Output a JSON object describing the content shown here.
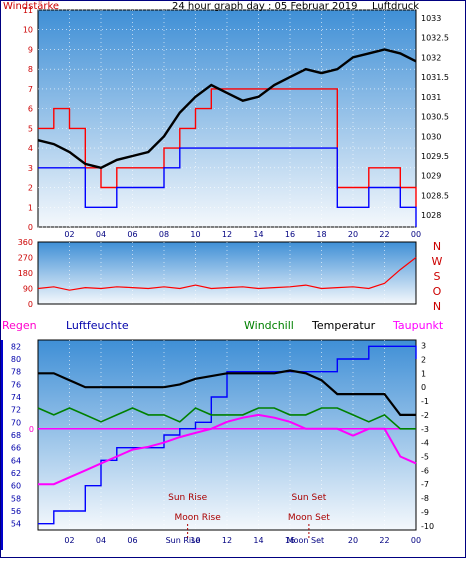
{
  "page": {
    "title": "24 hour graph day : 05 Februar 2019",
    "colors": {
      "background": "#ffffff",
      "frame": "#000080",
      "plot_top": "#3f8fd6",
      "plot_bottom": "#f4f8fc",
      "grid": "#ffffff"
    }
  },
  "chart_data": [
    {
      "id": "wind_pressure",
      "type": "line",
      "x_ticks": [
        "02",
        "04",
        "06",
        "08",
        "10",
        "12",
        "14",
        "16",
        "18",
        "20",
        "22",
        "00"
      ],
      "left_axis": {
        "label": "Windstärke",
        "color": "#cc0000",
        "ticks": [
          0,
          1,
          2,
          3,
          4,
          5,
          6,
          7,
          8,
          9,
          10,
          11
        ],
        "ylim": [
          0,
          11
        ]
      },
      "right_axis": {
        "label": "Luftdruck",
        "color": "#000000",
        "ticks": [
          1028,
          1028.5,
          1029,
          1029.5,
          1030,
          1030.5,
          1031,
          1031.5,
          1032,
          1032.5,
          1033
        ],
        "ylim": [
          1027.7,
          1033.2
        ]
      },
      "series": [
        {
          "color": "#ff0000",
          "axis": "left",
          "x": [
            0,
            1,
            2,
            3,
            4,
            5,
            6,
            7,
            8,
            9,
            10,
            11,
            12,
            13,
            14,
            15,
            16,
            17,
            18,
            19,
            20,
            21,
            22,
            23,
            24
          ],
          "values": [
            5,
            6,
            5,
            3,
            2,
            3,
            3,
            3,
            4,
            5,
            6,
            7,
            7,
            7,
            7,
            7,
            7,
            7,
            7,
            2,
            2,
            3,
            3,
            2,
            1
          ]
        },
        {
          "color": "#0000ff",
          "axis": "left",
          "x": [
            0,
            1,
            2,
            3,
            4,
            5,
            6,
            7,
            8,
            9,
            10,
            11,
            12,
            13,
            14,
            15,
            16,
            17,
            18,
            19,
            20,
            21,
            22,
            23,
            24
          ],
          "values": [
            3,
            3,
            3,
            1,
            1,
            2,
            2,
            2,
            3,
            4,
            4,
            4,
            4,
            4,
            4,
            4,
            4,
            4,
            4,
            1,
            1,
            2,
            2,
            1,
            0
          ]
        },
        {
          "color": "#000000",
          "axis": "right",
          "x": [
            0,
            1,
            2,
            3,
            4,
            5,
            6,
            7,
            8,
            9,
            10,
            11,
            12,
            13,
            14,
            15,
            16,
            17,
            18,
            19,
            20,
            21,
            22,
            23,
            24
          ],
          "values": [
            1029.9,
            1029.8,
            1029.6,
            1029.3,
            1029.2,
            1029.4,
            1029.5,
            1029.6,
            1030.0,
            1030.6,
            1031.0,
            1031.3,
            1031.1,
            1030.9,
            1031.0,
            1031.3,
            1031.5,
            1031.7,
            1031.6,
            1031.7,
            1032.0,
            1032.1,
            1032.2,
            1032.1,
            1031.9
          ]
        }
      ]
    },
    {
      "id": "wind_direction",
      "type": "line",
      "x_ticks": [],
      "left_axis": {
        "label": "",
        "color": "#cc0000",
        "ticks": [
          0,
          90,
          180,
          270,
          360
        ],
        "ylim": [
          0,
          360
        ]
      },
      "right_axis": {
        "labels": [
          "N",
          "W",
          "S",
          "O",
          "N"
        ],
        "color": "#cc0000"
      },
      "series": [
        {
          "color": "#ff0000",
          "x": [
            0,
            1,
            2,
            3,
            4,
            5,
            6,
            7,
            8,
            9,
            10,
            11,
            12,
            13,
            14,
            15,
            16,
            17,
            18,
            19,
            20,
            21,
            22,
            23,
            24
          ],
          "values": [
            90,
            100,
            80,
            95,
            90,
            100,
            95,
            90,
            100,
            90,
            110,
            90,
            95,
            100,
            90,
            95,
            100,
            110,
            90,
            95,
            100,
            90,
            120,
            200,
            270
          ]
        }
      ]
    },
    {
      "id": "temp_humidity",
      "type": "line",
      "x_ticks": [
        "02",
        "04",
        "06",
        "08",
        "10",
        "12",
        "14",
        "16",
        "18",
        "20",
        "22",
        "00"
      ],
      "axis_titles": {
        "regen": "Regen",
        "luftfeuchte": "Luftfeuchte",
        "windchill": "Windchill",
        "temperatur": "Temperatur",
        "taupunkt": "Taupunkt"
      },
      "left_axis": {
        "label": "Luftfeuchte",
        "color": "#0000aa",
        "ticks": [
          54,
          56,
          58,
          60,
          62,
          64,
          66,
          68,
          70,
          72,
          74,
          76,
          78,
          80,
          82
        ],
        "ylim": [
          53,
          83
        ]
      },
      "regen_axis": {
        "label": "Regen",
        "color": "#ff00cc",
        "ticks": [
          0
        ]
      },
      "right_axis": {
        "label": "Temperatur",
        "color": "#000000",
        "ticks": [
          3,
          2,
          1,
          0,
          -1,
          -2,
          -3,
          -4,
          -5,
          -6,
          -7,
          -8,
          -9,
          -10
        ],
        "ylim": [
          -10.3,
          3.4
        ]
      },
      "series": [
        {
          "name": "Luftfeuchte",
          "color": "#0000ff",
          "axis": "left",
          "x": [
            0,
            1,
            2,
            3,
            4,
            5,
            6,
            7,
            8,
            9,
            10,
            11,
            12,
            13,
            14,
            15,
            16,
            17,
            18,
            19,
            20,
            21,
            22,
            23,
            24
          ],
          "values": [
            54,
            56,
            56,
            60,
            64,
            66,
            66,
            66,
            68,
            69,
            70,
            74,
            78,
            78,
            78,
            78,
            78,
            78,
            78,
            80,
            80,
            82,
            82,
            82,
            80
          ]
        },
        {
          "name": "Windchill",
          "color": "#008000",
          "axis": "right",
          "x": [
            0,
            1,
            2,
            3,
            4,
            5,
            6,
            7,
            8,
            9,
            10,
            11,
            12,
            13,
            14,
            15,
            16,
            17,
            18,
            19,
            20,
            21,
            22,
            23,
            24
          ],
          "values": [
            -1.5,
            -2,
            -1.5,
            -2,
            -2.5,
            -2,
            -1.5,
            -2,
            -2,
            -2.5,
            -1.5,
            -2,
            -2,
            -2,
            -1.5,
            -1.5,
            -2,
            -2,
            -1.5,
            -1.5,
            -2,
            -2.5,
            -2,
            -3,
            -3
          ]
        },
        {
          "name": "Temperatur",
          "color": "#000000",
          "axis": "right",
          "x": [
            0,
            1,
            2,
            3,
            4,
            5,
            6,
            7,
            8,
            9,
            10,
            11,
            12,
            13,
            14,
            15,
            16,
            17,
            18,
            19,
            20,
            21,
            22,
            23,
            24
          ],
          "values": [
            1,
            1,
            0.5,
            0,
            0,
            0,
            0,
            0,
            0,
            0.2,
            0.6,
            0.8,
            1,
            1,
            1,
            1,
            1.2,
            1,
            0.5,
            -0.5,
            -0.5,
            -0.5,
            -0.5,
            -2,
            -2
          ]
        },
        {
          "name": "Taupunkt",
          "color": "#ff00ff",
          "axis": "right",
          "x": [
            0,
            1,
            2,
            3,
            4,
            5,
            6,
            7,
            8,
            9,
            10,
            11,
            12,
            13,
            14,
            15,
            16,
            17,
            18,
            19,
            20,
            21,
            22,
            23,
            24
          ],
          "values": [
            -7,
            -7,
            -6.5,
            -6,
            -5.5,
            -5,
            -4.5,
            -4.3,
            -4,
            -3.6,
            -3.3,
            -3,
            -2.5,
            -2.2,
            -2,
            -2.2,
            -2.5,
            -3,
            -3,
            -3,
            -3.5,
            -3,
            -3,
            -5,
            -5.5
          ]
        },
        {
          "name": "Regen",
          "color": "#ff00ff",
          "axis": "regen",
          "x": [
            0,
            24
          ],
          "values": [
            0,
            0
          ]
        }
      ],
      "annotations": {
        "sun_rise": "Sun Rise",
        "sun_set": "Sun Set",
        "moon_rise": "Moon Rise",
        "moon_set": "Moon Set",
        "sun_rise_time": "Sun Rise",
        "sun_set_time": "Sun Set",
        "moon_set_label": "Moon Set"
      }
    }
  ]
}
